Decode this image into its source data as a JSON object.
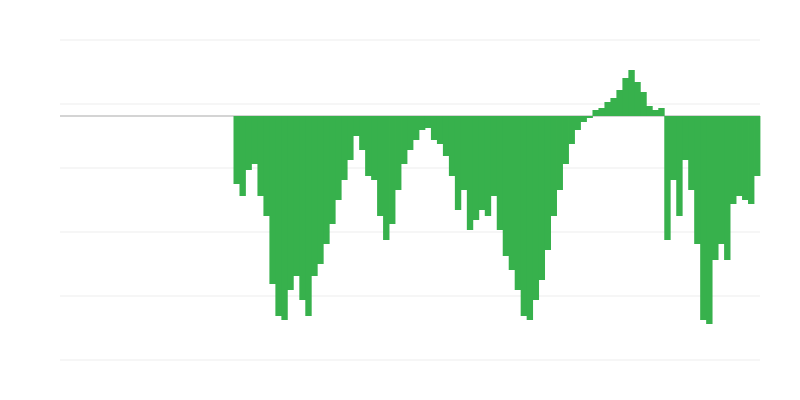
{
  "chart_data": {
    "type": "bar",
    "color": "#37b14c",
    "zero_line_color": "#aaaaaa",
    "grid": true,
    "ylim": [
      -61,
      19
    ],
    "yticks": [
      19,
      3,
      -13,
      -29,
      -45,
      -61
    ],
    "values": [
      null,
      null,
      null,
      null,
      null,
      null,
      null,
      null,
      null,
      null,
      null,
      null,
      null,
      null,
      null,
      null,
      null,
      null,
      null,
      null,
      null,
      null,
      null,
      null,
      null,
      null,
      null,
      null,
      null,
      -17,
      -20,
      -13.5,
      -12,
      -20,
      -25,
      -42,
      -50,
      -51,
      -43.5,
      -40,
      -46,
      -50,
      -40,
      -37,
      -32,
      -27,
      -21,
      -16,
      -11,
      -5,
      -8.5,
      -15,
      -16,
      -25,
      -31,
      -27,
      -18.5,
      -12,
      -8.5,
      -6,
      -3.5,
      -3,
      -6,
      -7,
      -10,
      -15,
      -23.5,
      -18.5,
      -28.5,
      -26,
      -23.5,
      -25,
      -20,
      -28.5,
      -35,
      -38.5,
      -43.5,
      -50,
      -51,
      -46,
      -41,
      -33.5,
      -25,
      -18.5,
      -12,
      -7,
      -3.5,
      -1.5,
      -0.5,
      1.5,
      2,
      3.5,
      4.5,
      6.5,
      9.5,
      11.5,
      8.5,
      6,
      2.5,
      1.5,
      2,
      -31,
      -16,
      -25,
      -11,
      -18.5,
      -32,
      -51,
      -52,
      -36,
      -32,
      -36,
      -22,
      -20,
      -21,
      -22,
      -15
    ]
  }
}
